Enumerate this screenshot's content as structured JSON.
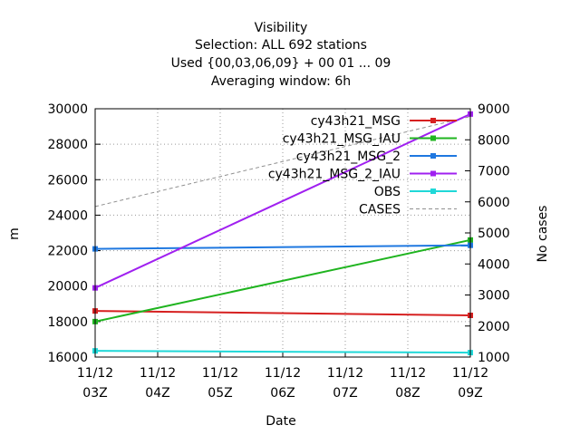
{
  "chart_data": {
    "type": "line",
    "title_lines": [
      "Visibility",
      "Selection: ALL    692 stations",
      "Used {00,03,06,09} + 00 01 ... 09",
      "Averaging window:  6h"
    ],
    "xlabel": "Date",
    "ylabel": "m",
    "y2label": "No cases",
    "x": [
      "11/12 03Z",
      "11/12 04Z",
      "11/12 05Z",
      "11/12 06Z",
      "11/12 07Z",
      "11/12 08Z",
      "11/12 09Z"
    ],
    "xtick_labels": [
      {
        "top": "11/12",
        "bottom": "03Z"
      },
      {
        "top": "11/12",
        "bottom": "04Z"
      },
      {
        "top": "11/12",
        "bottom": "05Z"
      },
      {
        "top": "11/12",
        "bottom": "06Z"
      },
      {
        "top": "11/12",
        "bottom": "07Z"
      },
      {
        "top": "11/12",
        "bottom": "08Z"
      },
      {
        "top": "11/12",
        "bottom": "09Z"
      }
    ],
    "ylim": [
      16000,
      30000
    ],
    "yticks": [
      16000,
      18000,
      20000,
      22000,
      24000,
      26000,
      28000,
      30000
    ],
    "y2lim": [
      1000,
      9000
    ],
    "y2ticks": [
      1000,
      2000,
      3000,
      4000,
      5000,
      6000,
      7000,
      8000,
      9000
    ],
    "grid": true,
    "legend_position": "top-right",
    "series": [
      {
        "name": "cy43h21_MSG",
        "color": "#d62020",
        "axis": "y",
        "style": "solid",
        "marker": "square",
        "x": [
          0,
          6
        ],
        "y": [
          18600,
          18350
        ]
      },
      {
        "name": "cy43h21_MSG_IAU",
        "color": "#1fb41f",
        "axis": "y",
        "style": "solid",
        "marker": "square",
        "x": [
          0,
          6
        ],
        "y": [
          18000,
          22600
        ]
      },
      {
        "name": "cy43h21_MSG_2",
        "color": "#1f78e0",
        "axis": "y",
        "style": "solid",
        "marker": "square",
        "x": [
          0,
          6
        ],
        "y": [
          22100,
          22300
        ]
      },
      {
        "name": "cy43h21_MSG_2_IAU",
        "color": "#a020f0",
        "axis": "y",
        "style": "solid",
        "marker": "square",
        "x": [
          0,
          6
        ],
        "y": [
          19900,
          29700
        ]
      },
      {
        "name": "OBS",
        "color": "#20d8d8",
        "axis": "y",
        "style": "solid",
        "marker": "square",
        "x": [
          0,
          6
        ],
        "y": [
          16350,
          16250
        ]
      },
      {
        "name": "CASES",
        "color": "#909090",
        "axis": "y2",
        "style": "dashed",
        "marker": "none",
        "x": [
          0,
          6
        ],
        "y": [
          5850,
          8750
        ]
      }
    ]
  }
}
